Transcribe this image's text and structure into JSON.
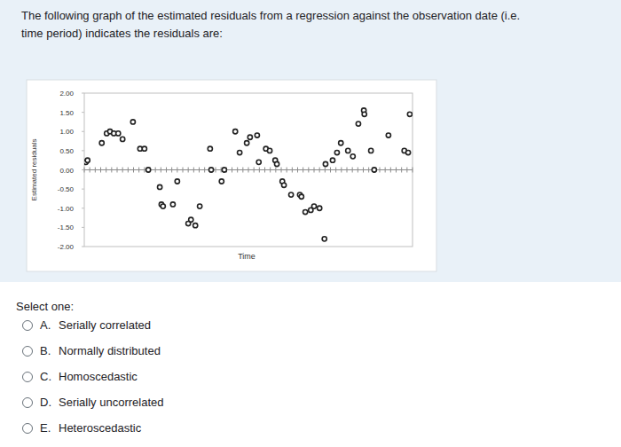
{
  "question": [
    "The following graph of the estimated residuals from a regression against the observation date (i.e.",
    "time period) indicates the residuals are:"
  ],
  "prompt": "Select one:",
  "options": [
    {
      "letter": "A.",
      "text": "Serially correlated"
    },
    {
      "letter": "B.",
      "text": "Normally distributed"
    },
    {
      "letter": "C.",
      "text": "Homoscedastic"
    },
    {
      "letter": "D.",
      "text": "Serially uncorrelated"
    },
    {
      "letter": "E.",
      "text": "Heteroscedastic"
    }
  ],
  "chart_data": {
    "type": "scatter",
    "x_label": "Time",
    "y_label": "Estimated residuals",
    "x": [
      0.3,
      0.6,
      3.2,
      4.1,
      4.7,
      5.4,
      6.2,
      7.0,
      8.9,
      10.2,
      11.0,
      11.7,
      13.8,
      14.1,
      14.4,
      16.2,
      17.0,
      19.0,
      19.5,
      20.3,
      21.1,
      23.0,
      23.2,
      25.1,
      25.6,
      27.6,
      28.4,
      29.7,
      30.3,
      31.6,
      31.9,
      33.2,
      33.9,
      34.9,
      35.2,
      36.2,
      36.5,
      37.8,
      39.4,
      39.7,
      40.4,
      41.4,
      42.0,
      43.0,
      43.9,
      44.1,
      45.4,
      46.2,
      46.9,
      48.2,
      49.1,
      50.1,
      51.1,
      51.2,
      52.4,
      53.0,
      55.6,
      58.5,
      59.2,
      59.5
    ],
    "values": [
      0.2,
      0.25,
      0.7,
      0.95,
      1.0,
      0.95,
      0.95,
      0.8,
      1.25,
      0.55,
      0.55,
      0.0,
      -0.45,
      -0.9,
      -0.95,
      -0.9,
      -0.3,
      -1.4,
      -1.3,
      -1.45,
      -0.95,
      0.55,
      0.0,
      -0.3,
      0.0,
      1.0,
      0.45,
      0.7,
      0.85,
      0.9,
      0.2,
      0.55,
      0.5,
      0.25,
      0.15,
      -0.3,
      -0.4,
      -0.65,
      -0.65,
      -0.7,
      -1.1,
      -1.05,
      -0.95,
      -1.0,
      -1.8,
      0.15,
      0.25,
      0.45,
      0.7,
      0.5,
      0.35,
      1.2,
      1.55,
      1.45,
      0.5,
      0.0,
      0.9,
      0.5,
      0.45,
      1.45
    ],
    "color": "#222222",
    "marker": "circle",
    "xlim": [
      0,
      60
    ],
    "xticks": [
      0,
      1,
      2,
      3,
      4,
      5,
      6,
      7,
      8,
      9,
      10,
      11,
      12,
      13,
      14,
      15,
      16,
      17,
      18,
      19,
      20,
      21,
      22,
      23,
      24,
      25,
      26,
      27,
      28,
      29,
      30,
      31,
      32,
      33,
      34,
      35,
      36,
      37,
      38,
      39,
      40,
      41,
      42,
      43,
      44,
      45,
      46,
      47,
      48,
      49,
      50,
      51,
      52,
      53,
      54,
      55,
      56,
      57,
      58,
      59,
      60
    ],
    "ylim": [
      -2,
      2
    ],
    "yticks": [
      {
        "value": 2,
        "label": "2.00"
      },
      {
        "value": 1.5,
        "label": "1.50"
      },
      {
        "value": 1,
        "label": "1.00"
      },
      {
        "value": 0.5,
        "label": "0.50"
      },
      {
        "value": 0,
        "label": "0.00"
      },
      {
        "value": -0.5,
        "label": "-0.50"
      },
      {
        "value": -1,
        "label": "-1.00"
      },
      {
        "value": -1.5,
        "label": "-1.50"
      },
      {
        "value": -2,
        "label": "-2.00"
      }
    ],
    "tick_labels": "y",
    "grid": false
  }
}
